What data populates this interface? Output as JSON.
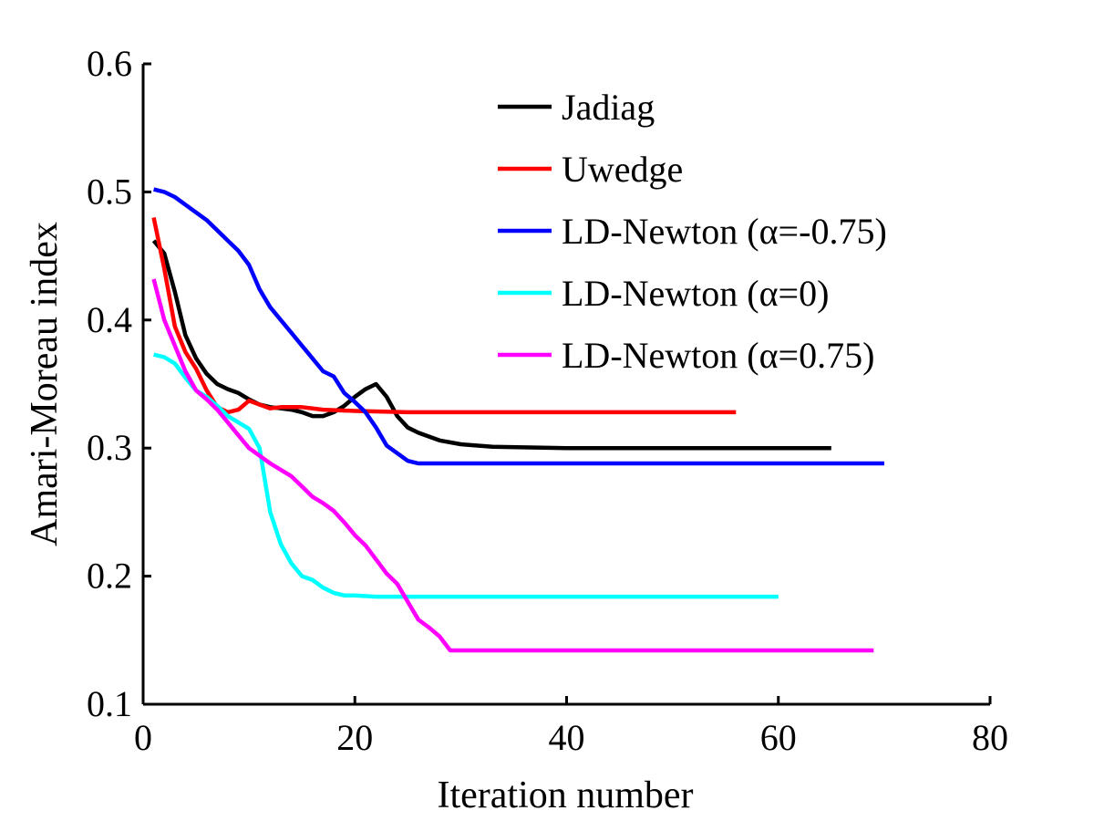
{
  "chart_data": {
    "type": "line",
    "title": "",
    "xlabel": "Iteration number",
    "ylabel": "Amari-Moreau index",
    "xlim": [
      0,
      80
    ],
    "ylim": [
      0.1,
      0.6
    ],
    "grid": false,
    "legend_position": "top-right",
    "x_ticks": [
      {
        "value": 0,
        "label": "0"
      },
      {
        "value": 20,
        "label": "20"
      },
      {
        "value": 40,
        "label": "40"
      },
      {
        "value": 60,
        "label": "60"
      },
      {
        "value": 80,
        "label": "80"
      }
    ],
    "y_ticks": [
      {
        "value": 0.1,
        "label": "0.1"
      },
      {
        "value": 0.2,
        "label": "0.2"
      },
      {
        "value": 0.3,
        "label": "0.3"
      },
      {
        "value": 0.4,
        "label": "0.4"
      },
      {
        "value": 0.5,
        "label": "0.5"
      },
      {
        "value": 0.6,
        "label": "0.6"
      }
    ],
    "series": [
      {
        "name": "Jadiag",
        "color": "#000000",
        "points": [
          [
            1,
            0.462
          ],
          [
            2,
            0.452
          ],
          [
            3,
            0.422
          ],
          [
            4,
            0.388
          ],
          [
            5,
            0.37
          ],
          [
            6,
            0.358
          ],
          [
            7,
            0.35
          ],
          [
            8,
            0.346
          ],
          [
            9,
            0.343
          ],
          [
            10,
            0.338
          ],
          [
            11,
            0.334
          ],
          [
            12,
            0.332
          ],
          [
            13,
            0.331
          ],
          [
            14,
            0.33
          ],
          [
            15,
            0.328
          ],
          [
            16,
            0.325
          ],
          [
            17,
            0.325
          ],
          [
            18,
            0.328
          ],
          [
            19,
            0.333
          ],
          [
            20,
            0.34
          ],
          [
            21,
            0.346
          ],
          [
            22,
            0.35
          ],
          [
            23,
            0.34
          ],
          [
            24,
            0.325
          ],
          [
            25,
            0.316
          ],
          [
            26,
            0.312
          ],
          [
            28,
            0.306
          ],
          [
            30,
            0.303
          ],
          [
            33,
            0.301
          ],
          [
            40,
            0.3
          ],
          [
            50,
            0.3
          ],
          [
            65,
            0.3
          ]
        ]
      },
      {
        "name": "Uwedge",
        "color": "#ff0000",
        "points": [
          [
            1,
            0.48
          ],
          [
            2,
            0.44
          ],
          [
            3,
            0.395
          ],
          [
            4,
            0.375
          ],
          [
            5,
            0.362
          ],
          [
            6,
            0.345
          ],
          [
            7,
            0.332
          ],
          [
            8,
            0.328
          ],
          [
            9,
            0.33
          ],
          [
            10,
            0.337
          ],
          [
            11,
            0.334
          ],
          [
            12,
            0.331
          ],
          [
            13,
            0.332
          ],
          [
            15,
            0.332
          ],
          [
            17,
            0.33
          ],
          [
            20,
            0.329
          ],
          [
            25,
            0.328
          ],
          [
            30,
            0.328
          ],
          [
            56,
            0.328
          ]
        ]
      },
      {
        "name": "LD-Newton (α=-0.75)",
        "color": "#0000ff",
        "points": [
          [
            1,
            0.502
          ],
          [
            2,
            0.5
          ],
          [
            3,
            0.496
          ],
          [
            4,
            0.49
          ],
          [
            5,
            0.484
          ],
          [
            6,
            0.478
          ],
          [
            7,
            0.47
          ],
          [
            8,
            0.462
          ],
          [
            9,
            0.454
          ],
          [
            10,
            0.443
          ],
          [
            11,
            0.424
          ],
          [
            12,
            0.41
          ],
          [
            13,
            0.4
          ],
          [
            14,
            0.39
          ],
          [
            15,
            0.38
          ],
          [
            16,
            0.37
          ],
          [
            17,
            0.36
          ],
          [
            18,
            0.356
          ],
          [
            19,
            0.343
          ],
          [
            20,
            0.336
          ],
          [
            21,
            0.328
          ],
          [
            22,
            0.316
          ],
          [
            23,
            0.302
          ],
          [
            24,
            0.296
          ],
          [
            25,
            0.29
          ],
          [
            26,
            0.288
          ],
          [
            30,
            0.288
          ],
          [
            46,
            0.288
          ],
          [
            70,
            0.288
          ]
        ]
      },
      {
        "name": "LD-Newton (α=0)",
        "color": "#00ffff",
        "points": [
          [
            1,
            0.373
          ],
          [
            2,
            0.371
          ],
          [
            3,
            0.366
          ],
          [
            4,
            0.355
          ],
          [
            5,
            0.345
          ],
          [
            6,
            0.34
          ],
          [
            7,
            0.333
          ],
          [
            8,
            0.325
          ],
          [
            9,
            0.32
          ],
          [
            10,
            0.315
          ],
          [
            11,
            0.3
          ],
          [
            12,
            0.25
          ],
          [
            13,
            0.225
          ],
          [
            14,
            0.21
          ],
          [
            15,
            0.2
          ],
          [
            16,
            0.197
          ],
          [
            17,
            0.191
          ],
          [
            18,
            0.187
          ],
          [
            19,
            0.185
          ],
          [
            20,
            0.185
          ],
          [
            22,
            0.184
          ],
          [
            30,
            0.184
          ],
          [
            40,
            0.184
          ],
          [
            60,
            0.184
          ]
        ]
      },
      {
        "name": "LD-Newton (α=0.75)",
        "color": "#ff00ff",
        "points": [
          [
            1,
            0.432
          ],
          [
            2,
            0.4
          ],
          [
            3,
            0.38
          ],
          [
            4,
            0.36
          ],
          [
            5,
            0.345
          ],
          [
            6,
            0.338
          ],
          [
            7,
            0.33
          ],
          [
            8,
            0.32
          ],
          [
            9,
            0.31
          ],
          [
            10,
            0.3
          ],
          [
            11,
            0.294
          ],
          [
            12,
            0.288
          ],
          [
            13,
            0.283
          ],
          [
            14,
            0.278
          ],
          [
            15,
            0.27
          ],
          [
            16,
            0.262
          ],
          [
            17,
            0.257
          ],
          [
            18,
            0.251
          ],
          [
            19,
            0.242
          ],
          [
            20,
            0.232
          ],
          [
            21,
            0.224
          ],
          [
            22,
            0.213
          ],
          [
            23,
            0.202
          ],
          [
            24,
            0.194
          ],
          [
            25,
            0.18
          ],
          [
            26,
            0.166
          ],
          [
            27,
            0.16
          ],
          [
            28,
            0.153
          ],
          [
            29,
            0.142
          ],
          [
            35,
            0.142
          ],
          [
            50,
            0.142
          ],
          [
            69,
            0.142
          ]
        ]
      }
    ]
  }
}
